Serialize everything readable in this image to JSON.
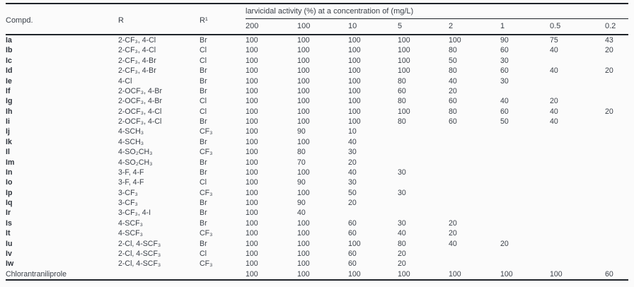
{
  "page": {
    "background": "#fbfbfb",
    "text_color": "#3b4149",
    "rule_color": "#1f2329"
  },
  "table": {
    "headers": {
      "compound": "Compd.",
      "r": "R",
      "r1": "R¹",
      "activity_group": "larvicidal activity (%) at a concentration of (mg/L)"
    },
    "concentrations": [
      "200",
      "100",
      "10",
      "5",
      "2",
      "1",
      "0.5",
      "0.2"
    ],
    "rows": [
      {
        "compd": "Ia",
        "r": "2-CF₃, 4-Cl",
        "r1": "Br",
        "values": [
          "100",
          "100",
          "100",
          "100",
          "100",
          "90",
          "75",
          "43"
        ]
      },
      {
        "compd": "Ib",
        "r": "2-CF₃, 4-Cl",
        "r1": "Cl",
        "values": [
          "100",
          "100",
          "100",
          "100",
          "80",
          "60",
          "40",
          "20"
        ]
      },
      {
        "compd": "Ic",
        "r": "2-CF₃, 4-Br",
        "r1": "Cl",
        "values": [
          "100",
          "100",
          "100",
          "100",
          "50",
          "30",
          "",
          ""
        ]
      },
      {
        "compd": "Id",
        "r": "2-CF₃, 4-Br",
        "r1": "Br",
        "values": [
          "100",
          "100",
          "100",
          "100",
          "80",
          "60",
          "40",
          "20"
        ]
      },
      {
        "compd": "Ie",
        "r": "4-Cl",
        "r1": "Br",
        "values": [
          "100",
          "100",
          "100",
          "80",
          "40",
          "30",
          "",
          ""
        ]
      },
      {
        "compd": "If",
        "r": "2-OCF₃, 4-Br",
        "r1": "Br",
        "values": [
          "100",
          "100",
          "100",
          "60",
          "20",
          "",
          "",
          ""
        ]
      },
      {
        "compd": "Ig",
        "r": "2-OCF₃, 4-Br",
        "r1": "Cl",
        "values": [
          "100",
          "100",
          "100",
          "80",
          "60",
          "40",
          "20",
          ""
        ]
      },
      {
        "compd": "Ih",
        "r": "2-OCF₃, 4-Cl",
        "r1": "Cl",
        "values": [
          "100",
          "100",
          "100",
          "100",
          "80",
          "60",
          "40",
          "20"
        ]
      },
      {
        "compd": "Ii",
        "r": "2-OCF₃, 4-Cl",
        "r1": "Br",
        "values": [
          "100",
          "100",
          "100",
          "80",
          "60",
          "50",
          "40",
          ""
        ]
      },
      {
        "compd": "Ij",
        "r": "4-SCH₃",
        "r1": "CF₃",
        "values": [
          "100",
          "90",
          "10",
          "",
          "",
          "",
          "",
          ""
        ]
      },
      {
        "compd": "Ik",
        "r": "4-SCH₃",
        "r1": "Br",
        "values": [
          "100",
          "100",
          "40",
          "",
          "",
          "",
          "",
          ""
        ]
      },
      {
        "compd": "Il",
        "r": "4-SO₂CH₃",
        "r1": "CF₃",
        "values": [
          "100",
          "80",
          "30",
          "",
          "",
          "",
          "",
          ""
        ]
      },
      {
        "compd": "Im",
        "r": "4-SO₂CH₃",
        "r1": "Br",
        "values": [
          "100",
          "70",
          "20",
          "",
          "",
          "",
          "",
          ""
        ]
      },
      {
        "compd": "In",
        "r": "3-F, 4-F",
        "r1": "Br",
        "values": [
          "100",
          "100",
          "40",
          "30",
          "",
          "",
          "",
          ""
        ]
      },
      {
        "compd": "Io",
        "r": "3-F, 4-F",
        "r1": "Cl",
        "values": [
          "100",
          "90",
          "30",
          "",
          "",
          "",
          "",
          ""
        ]
      },
      {
        "compd": "Ip",
        "r": "3-CF₃",
        "r1": "CF₃",
        "values": [
          "100",
          "100",
          "50",
          "30",
          "",
          "",
          "",
          ""
        ]
      },
      {
        "compd": "Iq",
        "r": "3-CF₃",
        "r1": "Br",
        "values": [
          "100",
          "90",
          "20",
          "",
          "",
          "",
          "",
          ""
        ]
      },
      {
        "compd": "Ir",
        "r": "3-CF₃, 4-I",
        "r1": "Br",
        "values": [
          "100",
          "40",
          "",
          "",
          "",
          "",
          "",
          ""
        ]
      },
      {
        "compd": "Is",
        "r": "4-SCF₃",
        "r1": "Br",
        "values": [
          "100",
          "100",
          "60",
          "30",
          "20",
          "",
          "",
          ""
        ]
      },
      {
        "compd": "It",
        "r": "4-SCF₃",
        "r1": "CF₃",
        "values": [
          "100",
          "100",
          "60",
          "40",
          "20",
          "",
          "",
          ""
        ]
      },
      {
        "compd": "Iu",
        "r": "2-Cl, 4-SCF₃",
        "r1": "Br",
        "values": [
          "100",
          "100",
          "100",
          "80",
          "40",
          "20",
          "",
          ""
        ]
      },
      {
        "compd": "Iv",
        "r": "2-Cl, 4-SCF₃",
        "r1": "Cl",
        "values": [
          "100",
          "100",
          "60",
          "20",
          "",
          "",
          "",
          ""
        ]
      },
      {
        "compd": "Iw",
        "r": "2-Cl, 4-SCF₃",
        "r1": "CF₃",
        "values": [
          "100",
          "100",
          "60",
          "20",
          "",
          "",
          "",
          ""
        ]
      },
      {
        "compd": "Chlorantraniliprole",
        "r": "",
        "r1": "",
        "values": [
          "100",
          "100",
          "100",
          "100",
          "100",
          "100",
          "100",
          "60"
        ],
        "is_reference": true
      }
    ]
  }
}
